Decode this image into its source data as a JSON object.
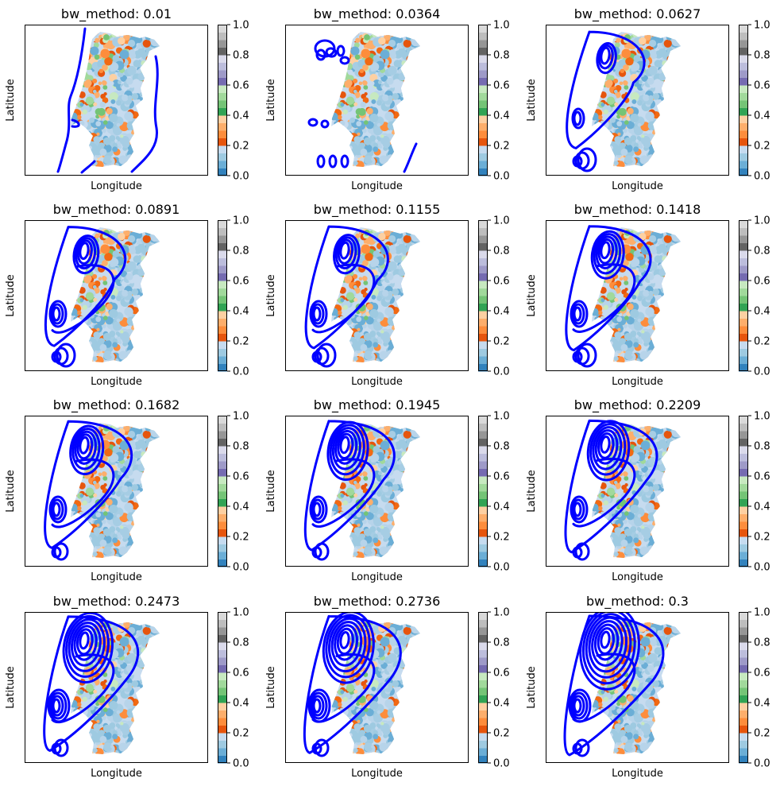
{
  "chart_data": {
    "type": "heatmap",
    "panels": [
      {
        "title": "bw_method: 0.01"
      },
      {
        "title": "bw_method: 0.0364"
      },
      {
        "title": "bw_method: 0.0627"
      },
      {
        "title": "bw_method: 0.0891"
      },
      {
        "title": "bw_method: 0.1155"
      },
      {
        "title": "bw_method: 0.1418"
      },
      {
        "title": "bw_method: 0.1682"
      },
      {
        "title": "bw_method: 0.1945"
      },
      {
        "title": "bw_method: 0.2209"
      },
      {
        "title": "bw_method: 0.2473"
      },
      {
        "title": "bw_method: 0.2736"
      },
      {
        "title": "bw_method: 0.3"
      }
    ],
    "xlabel": "Longitude",
    "ylabel": "Latitude",
    "colorbar": {
      "range": [
        0,
        1
      ],
      "ticks": [
        "0.0",
        "0.2",
        "0.4",
        "0.6",
        "0.8",
        "1.0"
      ],
      "colors": [
        "#3182bd",
        "#6baed6",
        "#9ecae1",
        "#c6dbef",
        "#e6550d",
        "#fd8d3c",
        "#fdae6b",
        "#fdd0a2",
        "#31a354",
        "#74c476",
        "#a1d99b",
        "#c7e9c0",
        "#756bb1",
        "#9e9ac8",
        "#bcbddc",
        "#dadaeb",
        "#636363",
        "#969696",
        "#bdbdbd",
        "#d9d9d9"
      ]
    },
    "overlay_color": "#0000ff",
    "grid": false
  }
}
